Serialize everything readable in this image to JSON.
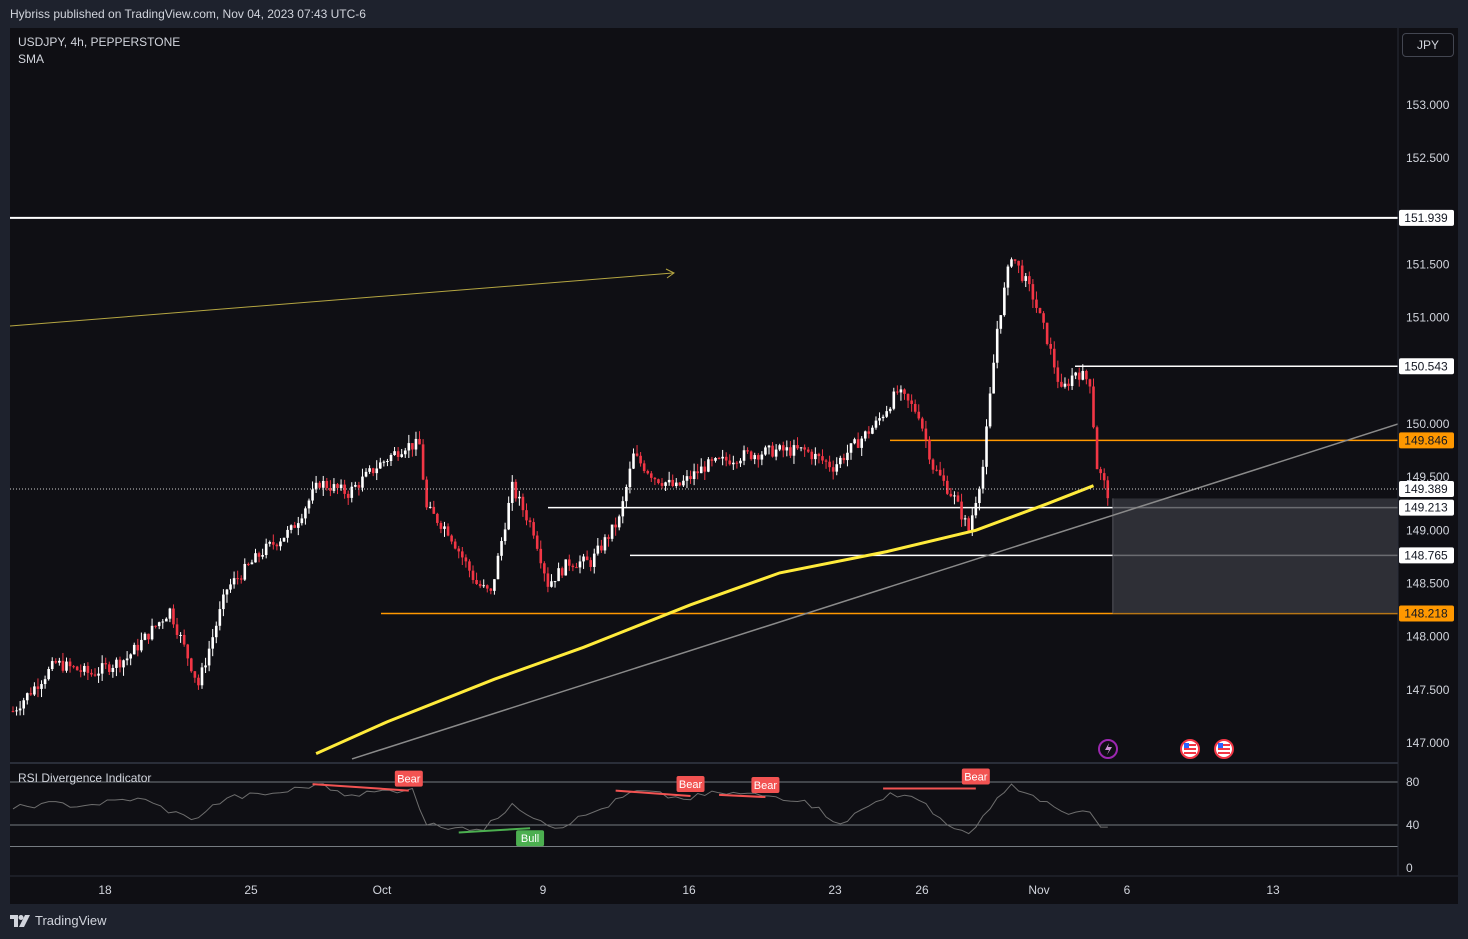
{
  "header": {
    "published": "Hybriss published on TradingView.com, Nov 04, 2023 07:43 UTC-6"
  },
  "legend": {
    "symbol": "USDJPY, 4h, PEPPERSTONE",
    "indicator": "SMA"
  },
  "currency_button": "JPY",
  "rsi_panel": {
    "title": "RSI Divergence Indicator"
  },
  "footer": {
    "brand": "TradingView"
  },
  "colors": {
    "up": "#ffffff",
    "down": "#f23645",
    "sma": "#ffeb3b",
    "orange": "#ff9800",
    "bear": "#f25352",
    "bull": "#4caf50",
    "background": "#0f0f14"
  },
  "chart_data": {
    "type": "candlestick",
    "symbol": "USDJPY",
    "interval": "4h",
    "y_ticks": [
      153.0,
      152.5,
      151.5,
      151.0,
      150.0,
      149.5,
      149.0,
      148.5,
      148.0,
      147.5,
      147.0
    ],
    "y_tick_labels": [
      "153.000",
      "152.500",
      "151.500",
      "151.000",
      "150.000",
      "149.500",
      "149.000",
      "148.500",
      "148.000",
      "147.500",
      "147.000"
    ],
    "ylim": [
      146.8,
      153.6
    ],
    "x_labels": [
      "18",
      "25",
      "Oct",
      "9",
      "16",
      "23",
      "26",
      "Nov",
      "6",
      "13"
    ],
    "price_levels": [
      {
        "value": 151.939,
        "label": "151.939",
        "color": "#ffffff"
      },
      {
        "value": 150.543,
        "label": "150.543",
        "color": "#ffffff"
      },
      {
        "value": 149.846,
        "label": "149.846",
        "color": "#ff9800"
      },
      {
        "value": 149.389,
        "label": "149.389",
        "color": "#ffffff"
      },
      {
        "value": 149.213,
        "label": "149.213",
        "color": "#ffffff"
      },
      {
        "value": 148.765,
        "label": "148.765",
        "color": "#ffffff"
      },
      {
        "value": 148.218,
        "label": "148.218",
        "color": "#ff9800"
      }
    ],
    "close_anchors": [
      {
        "t": 0,
        "c": 147.3
      },
      {
        "t": 12,
        "c": 147.75
      },
      {
        "t": 22,
        "c": 147.65
      },
      {
        "t": 32,
        "c": 147.8
      },
      {
        "t": 44,
        "c": 148.25
      },
      {
        "t": 52,
        "c": 147.55
      },
      {
        "t": 60,
        "c": 148.45
      },
      {
        "t": 70,
        "c": 148.8
      },
      {
        "t": 78,
        "c": 149.0
      },
      {
        "t": 86,
        "c": 149.45
      },
      {
        "t": 94,
        "c": 149.35
      },
      {
        "t": 102,
        "c": 149.6
      },
      {
        "t": 110,
        "c": 149.8
      },
      {
        "t": 114,
        "c": 149.8
      },
      {
        "t": 116,
        "c": 149.2
      },
      {
        "t": 122,
        "c": 149.0
      },
      {
        "t": 130,
        "c": 148.5
      },
      {
        "t": 134,
        "c": 148.4
      },
      {
        "t": 140,
        "c": 149.4
      },
      {
        "t": 146,
        "c": 149.0
      },
      {
        "t": 150,
        "c": 148.5
      },
      {
        "t": 156,
        "c": 148.7
      },
      {
        "t": 162,
        "c": 148.7
      },
      {
        "t": 170,
        "c": 149.1
      },
      {
        "t": 174,
        "c": 149.7
      },
      {
        "t": 180,
        "c": 149.5
      },
      {
        "t": 186,
        "c": 149.4
      },
      {
        "t": 194,
        "c": 149.6
      },
      {
        "t": 204,
        "c": 149.7
      },
      {
        "t": 214,
        "c": 149.75
      },
      {
        "t": 222,
        "c": 149.75
      },
      {
        "t": 230,
        "c": 149.6
      },
      {
        "t": 236,
        "c": 149.8
      },
      {
        "t": 242,
        "c": 150.0
      },
      {
        "t": 248,
        "c": 150.3
      },
      {
        "t": 254,
        "c": 150.1
      },
      {
        "t": 258,
        "c": 149.6
      },
      {
        "t": 264,
        "c": 149.3
      },
      {
        "t": 268,
        "c": 149.0
      },
      {
        "t": 272,
        "c": 149.6
      },
      {
        "t": 276,
        "c": 150.9
      },
      {
        "t": 280,
        "c": 151.6
      },
      {
        "t": 286,
        "c": 151.2
      },
      {
        "t": 290,
        "c": 150.8
      },
      {
        "t": 294,
        "c": 150.3
      },
      {
        "t": 298,
        "c": 150.5
      },
      {
        "t": 302,
        "c": 150.4
      },
      {
        "t": 304,
        "c": 149.6
      },
      {
        "t": 307,
        "c": 149.35
      }
    ],
    "sma_anchors": [
      {
        "t": 85,
        "v": 146.9
      },
      {
        "t": 105,
        "v": 147.2
      },
      {
        "t": 135,
        "v": 147.6
      },
      {
        "t": 160,
        "v": 147.9
      },
      {
        "t": 190,
        "v": 148.3
      },
      {
        "t": 215,
        "v": 148.6
      },
      {
        "t": 245,
        "v": 148.8
      },
      {
        "t": 270,
        "v": 149.0
      },
      {
        "t": 290,
        "v": 149.25
      },
      {
        "t": 303,
        "v": 149.42
      }
    ],
    "rsi": {
      "y_ticks": [
        80,
        40,
        0
      ],
      "y_tick_labels": [
        "80",
        "40",
        "0"
      ],
      "levels": [
        80,
        40,
        20
      ],
      "anchors": [
        {
          "t": 0,
          "v": 55
        },
        {
          "t": 8,
          "v": 60
        },
        {
          "t": 20,
          "v": 58
        },
        {
          "t": 35,
          "v": 65
        },
        {
          "t": 50,
          "v": 45
        },
        {
          "t": 60,
          "v": 65
        },
        {
          "t": 75,
          "v": 70
        },
        {
          "t": 85,
          "v": 78
        },
        {
          "t": 95,
          "v": 68
        },
        {
          "t": 112,
          "v": 74
        },
        {
          "t": 116,
          "v": 40
        },
        {
          "t": 126,
          "v": 38
        },
        {
          "t": 132,
          "v": 35
        },
        {
          "t": 140,
          "v": 60
        },
        {
          "t": 148,
          "v": 44
        },
        {
          "t": 152,
          "v": 37
        },
        {
          "t": 165,
          "v": 55
        },
        {
          "t": 175,
          "v": 72
        },
        {
          "t": 188,
          "v": 64
        },
        {
          "t": 198,
          "v": 70
        },
        {
          "t": 212,
          "v": 67
        },
        {
          "t": 222,
          "v": 63
        },
        {
          "t": 232,
          "v": 41
        },
        {
          "t": 246,
          "v": 70
        },
        {
          "t": 256,
          "v": 60
        },
        {
          "t": 262,
          "v": 40
        },
        {
          "t": 268,
          "v": 32
        },
        {
          "t": 274,
          "v": 55
        },
        {
          "t": 280,
          "v": 78
        },
        {
          "t": 288,
          "v": 62
        },
        {
          "t": 296,
          "v": 50
        },
        {
          "t": 302,
          "v": 52
        },
        {
          "t": 305,
          "v": 38
        },
        {
          "t": 307,
          "v": 38
        }
      ],
      "signals": [
        {
          "label": "Bear",
          "type": "bear",
          "t1": 84,
          "v1": 78,
          "t2": 111,
          "v2": 72
        },
        {
          "label": "Bull",
          "type": "bull",
          "t1": 125,
          "v1": 33,
          "t2": 145,
          "v2": 37
        },
        {
          "label": "Bear",
          "type": "bear",
          "t1": 169,
          "v1": 72,
          "t2": 190,
          "v2": 67
        },
        {
          "label": "Bear",
          "type": "bear",
          "t1": 198,
          "v1": 68,
          "t2": 211,
          "v2": 66
        },
        {
          "label": "Bear",
          "type": "bear",
          "t1": 244,
          "v1": 74,
          "t2": 270,
          "v2": 74
        }
      ]
    }
  }
}
